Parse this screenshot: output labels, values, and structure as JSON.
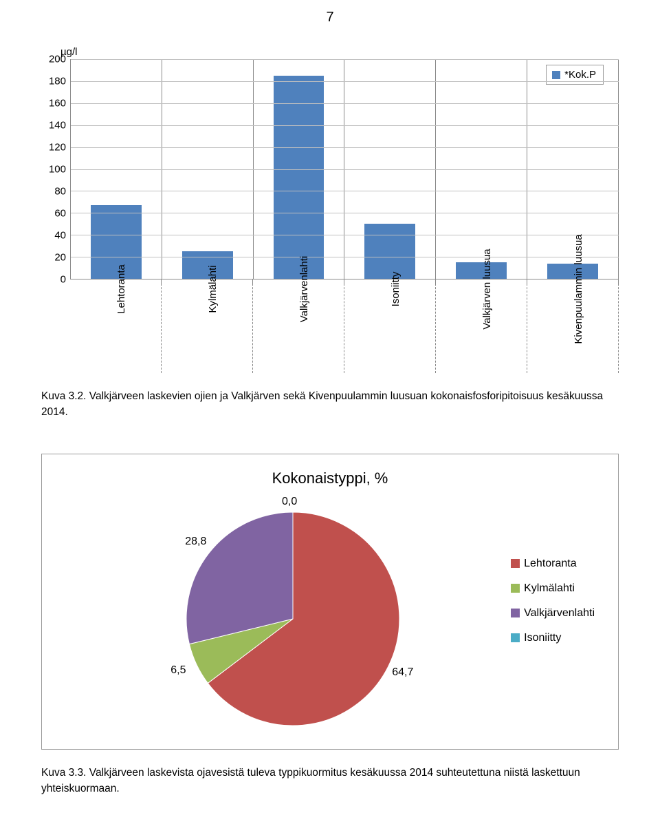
{
  "page_number": "7",
  "bar_chart": {
    "type": "bar",
    "y_axis_title": "µg/l",
    "ylim": [
      0,
      200
    ],
    "ytick_step": 20,
    "yticks": [
      0,
      20,
      40,
      60,
      80,
      100,
      120,
      140,
      160,
      180,
      200
    ],
    "categories": [
      "Lehtoranta",
      "Kylmälahti",
      "Valkjärvenlahti",
      "Isoniitty",
      "Valkjärven luusua",
      "Kivenpuulammin luusua"
    ],
    "values": [
      67,
      25,
      185,
      50,
      15,
      14
    ],
    "bar_color": "#4f81bd",
    "grid_color": "#bfbfbf",
    "axis_color": "#888888",
    "background_color": "#ffffff",
    "legend": {
      "label": "*Kok.P",
      "swatch_color": "#4f81bd"
    }
  },
  "caption_bar": "Kuva 3.2. Valkjärveen laskevien ojien ja Valkjärven sekä Kivenpuulammin luusuan kokonaisfosforipitoisuus kesäkuussa 2014.",
  "pie_chart": {
    "type": "pie",
    "title": "Kokonaistyppi, %",
    "slices": [
      {
        "label": "Lehtoranta",
        "value": 64.7,
        "color": "#c0504d",
        "label_text": "64,7"
      },
      {
        "label": "Kylmälahti",
        "value": 6.5,
        "color": "#9bbb59",
        "label_text": "6,5"
      },
      {
        "label": "Valkjärvenlahti",
        "value": 28.8,
        "color": "#8064a2",
        "label_text": "28,8"
      },
      {
        "label": "Isoniitty",
        "value": 0.0,
        "color": "#4bacc6",
        "label_text": "0,0"
      }
    ],
    "title_fontsize": 22,
    "label_fontsize": 16,
    "start_angle_deg": -90,
    "direction": "clockwise",
    "legend_items": [
      {
        "label": "Lehtoranta",
        "color": "#c0504d"
      },
      {
        "label": "Kylmälahti",
        "color": "#9bbb59"
      },
      {
        "label": "Valkjärvenlahti",
        "color": "#8064a2"
      },
      {
        "label": "Isoniitty",
        "color": "#4bacc6"
      }
    ]
  },
  "caption_pie": "Kuva 3.3. Valkjärveen laskevista ojavesistä tuleva typpikuormitus kesäkuussa 2014 suhteutettuna niistä laskettuun yhteiskuormaan."
}
